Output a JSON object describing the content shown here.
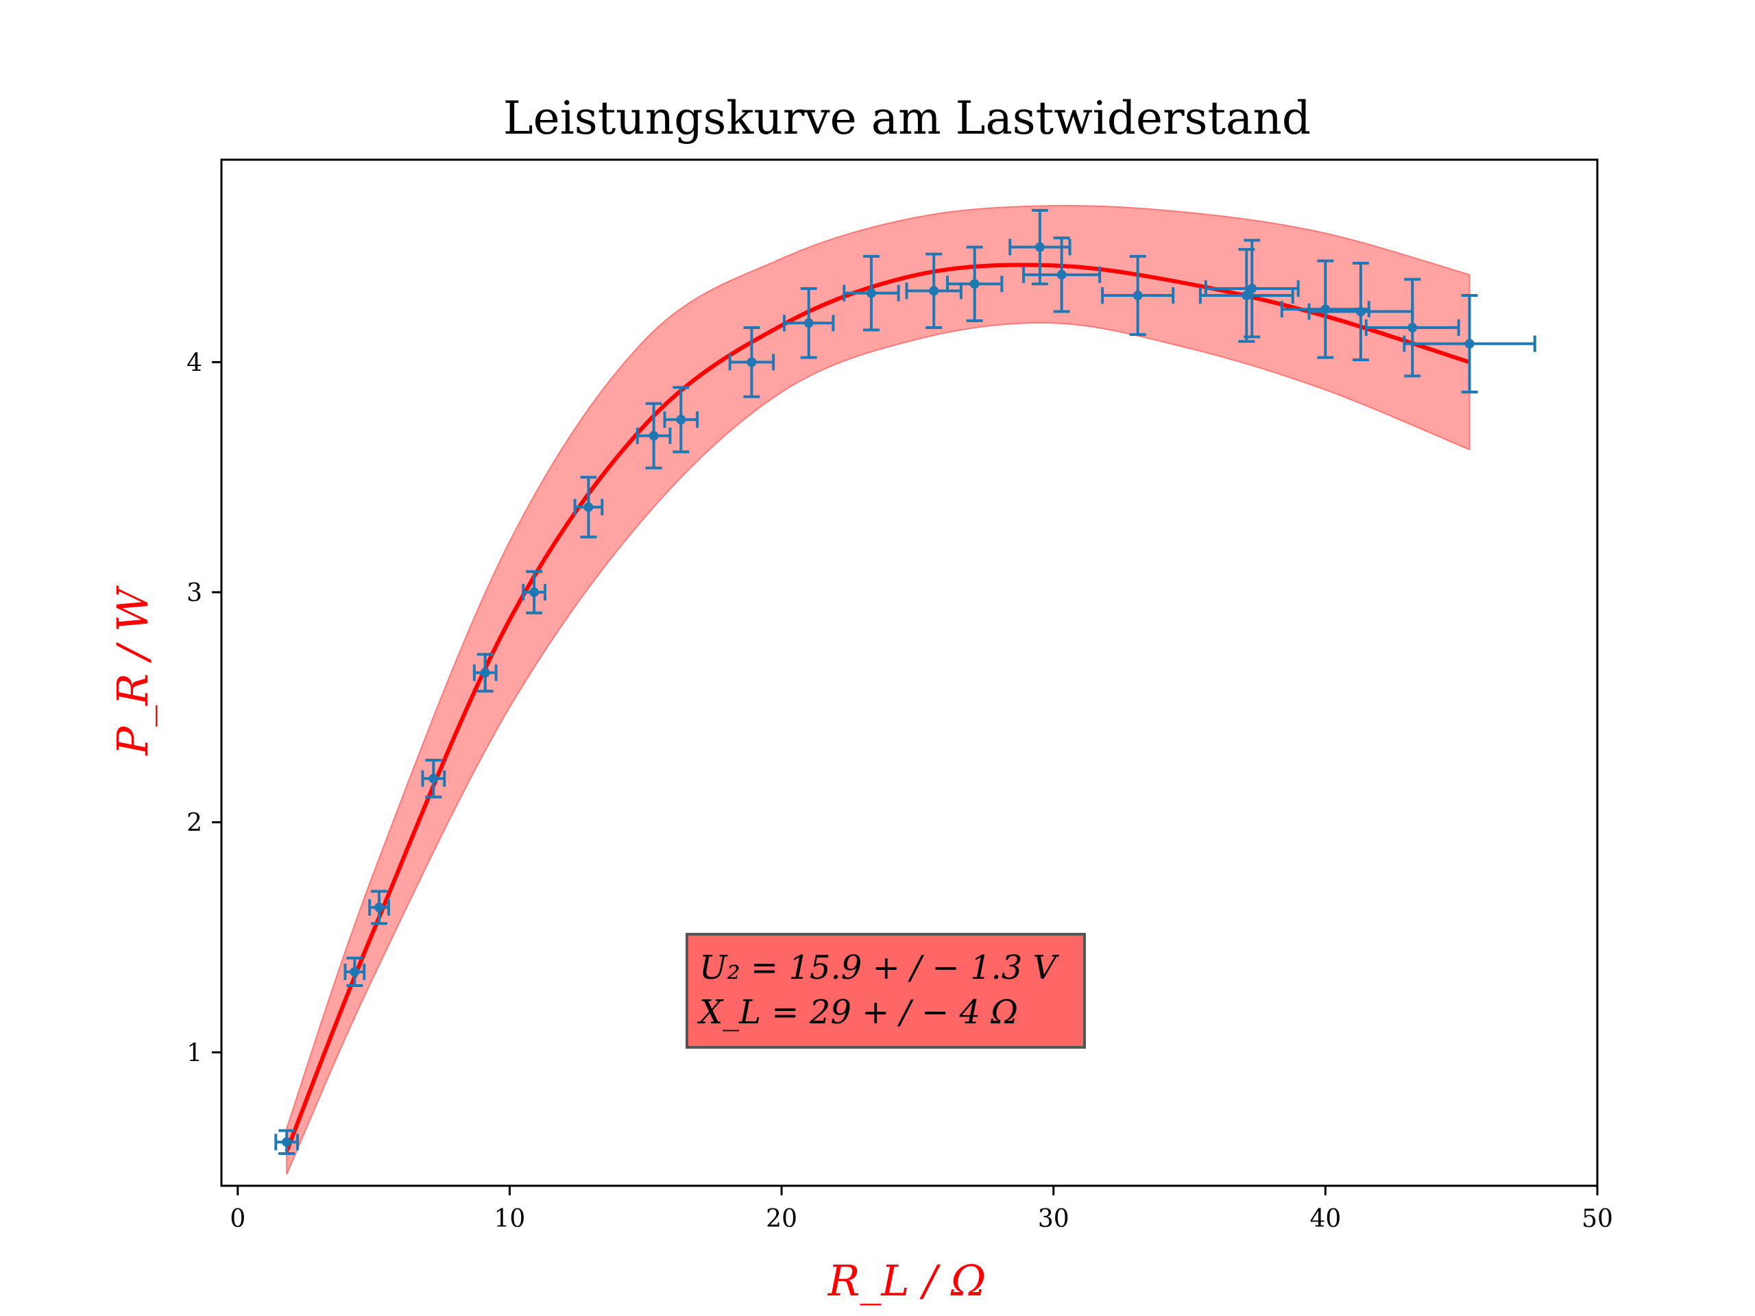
{
  "chart_data": {
    "type": "scatter",
    "title": "Leistungskurve am Lastwiderstand",
    "xlabel": "R_L / Ω",
    "ylabel": "P_R / W",
    "xlim": [
      -0.6,
      50
    ],
    "ylim": [
      0.42,
      4.88
    ],
    "xticks": [
      "0",
      "10",
      "20",
      "30",
      "40",
      "50"
    ],
    "yticks": [
      "1",
      "2",
      "3",
      "4"
    ],
    "grid": false,
    "colors": {
      "points": "#1f77b4",
      "fit": "#ff0000",
      "band": "#ff9999",
      "annotation_box": "#ff6666"
    },
    "annotation": {
      "line1": "U₂ = 15.9 + / − 1.3 V",
      "line2": "X_L = 29 + / − 4 Ω"
    },
    "series": [
      {
        "kind": "errorbar",
        "points": [
          {
            "x": 1.8,
            "y": 0.61,
            "xerr": 0.4,
            "yerr": 0.05
          },
          {
            "x": 4.3,
            "y": 1.35,
            "xerr": 0.35,
            "yerr": 0.06
          },
          {
            "x": 5.2,
            "y": 1.63,
            "xerr": 0.35,
            "yerr": 0.07
          },
          {
            "x": 7.2,
            "y": 2.19,
            "xerr": 0.4,
            "yerr": 0.08
          },
          {
            "x": 9.1,
            "y": 2.65,
            "xerr": 0.4,
            "yerr": 0.08
          },
          {
            "x": 10.9,
            "y": 3.0,
            "xerr": 0.4,
            "yerr": 0.09
          },
          {
            "x": 12.9,
            "y": 3.37,
            "xerr": 0.5,
            "yerr": 0.13
          },
          {
            "x": 15.3,
            "y": 3.68,
            "xerr": 0.6,
            "yerr": 0.14
          },
          {
            "x": 16.3,
            "y": 3.75,
            "xerr": 0.6,
            "yerr": 0.14
          },
          {
            "x": 18.9,
            "y": 4.0,
            "xerr": 0.8,
            "yerr": 0.15
          },
          {
            "x": 21.0,
            "y": 4.17,
            "xerr": 0.9,
            "yerr": 0.15
          },
          {
            "x": 23.3,
            "y": 4.3,
            "xerr": 1.0,
            "yerr": 0.16
          },
          {
            "x": 25.6,
            "y": 4.31,
            "xerr": 1.0,
            "yerr": 0.16
          },
          {
            "x": 27.1,
            "y": 4.34,
            "xerr": 1.0,
            "yerr": 0.16
          },
          {
            "x": 29.5,
            "y": 4.5,
            "xerr": 1.1,
            "yerr": 0.16
          },
          {
            "x": 30.3,
            "y": 4.38,
            "xerr": 1.4,
            "yerr": 0.16
          },
          {
            "x": 33.1,
            "y": 4.29,
            "xerr": 1.3,
            "yerr": 0.17
          },
          {
            "x": 37.1,
            "y": 4.29,
            "xerr": 1.7,
            "yerr": 0.2
          },
          {
            "x": 37.3,
            "y": 4.32,
            "xerr": 1.7,
            "yerr": 0.21
          },
          {
            "x": 40.0,
            "y": 4.23,
            "xerr": 1.6,
            "yerr": 0.21
          },
          {
            "x": 41.3,
            "y": 4.22,
            "xerr": 1.9,
            "yerr": 0.21
          },
          {
            "x": 43.2,
            "y": 4.15,
            "xerr": 1.7,
            "yerr": 0.21
          },
          {
            "x": 45.3,
            "y": 4.08,
            "xerr": 2.4,
            "yerr": 0.21
          }
        ]
      },
      {
        "kind": "fit",
        "x": [
          1.8,
          5,
          10,
          15,
          20,
          25,
          30,
          35,
          40,
          45.3
        ],
        "y": [
          0.57,
          1.53,
          2.88,
          3.73,
          4.16,
          4.38,
          4.42,
          4.34,
          4.2,
          4.0
        ]
      },
      {
        "kind": "band",
        "x": [
          1.8,
          5,
          10,
          15,
          20,
          25,
          30,
          35,
          40,
          45.3
        ],
        "upper": [
          0.67,
          1.78,
          3.22,
          4.1,
          4.45,
          4.63,
          4.68,
          4.65,
          4.56,
          4.38
        ],
        "lower": [
          0.47,
          1.33,
          2.5,
          3.33,
          3.87,
          4.1,
          4.17,
          4.06,
          3.88,
          3.62
        ]
      }
    ]
  }
}
